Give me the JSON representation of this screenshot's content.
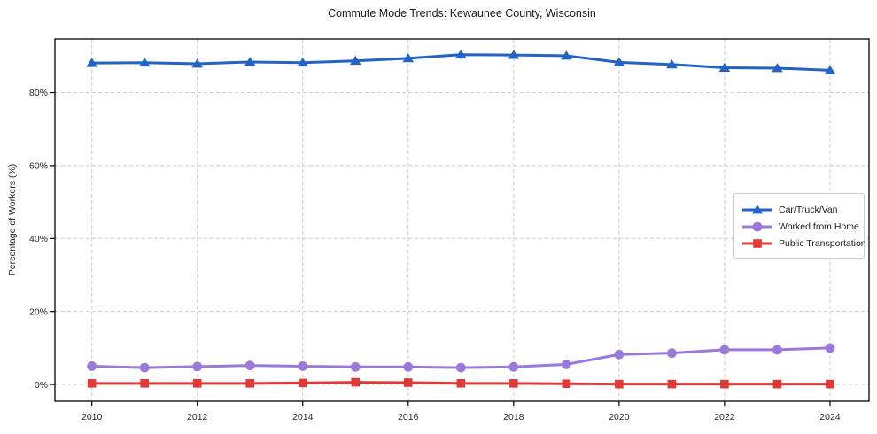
{
  "chart_data": {
    "type": "line",
    "title": "Commute Mode Trends: Kewaunee County, Wisconsin",
    "xlabel": "",
    "ylabel": "Percentage of Workers (%)",
    "x": [
      2010,
      2011,
      2012,
      2013,
      2014,
      2015,
      2016,
      2017,
      2018,
      2019,
      2020,
      2021,
      2022,
      2023,
      2024
    ],
    "xticks": [
      2010,
      2012,
      2014,
      2016,
      2018,
      2020,
      2022,
      2024
    ],
    "yticks": [
      0,
      20,
      40,
      60,
      80
    ],
    "ytick_suffix": "%",
    "xlim": [
      2009.3,
      2024.74
    ],
    "ylim": [
      -4.6,
      94.7
    ],
    "grid": true,
    "grid_style": "dashed",
    "grid_color": "#cccccc",
    "legend_position": "center-right",
    "series": [
      {
        "name": "Car/Truck/Van",
        "color": "#2263c5",
        "marker": "triangle",
        "values": [
          88.1,
          88.2,
          87.9,
          88.4,
          88.2,
          88.7,
          89.4,
          90.4,
          90.3,
          90.1,
          88.3,
          87.7,
          86.8,
          86.7,
          86.1
        ]
      },
      {
        "name": "Worked from Home",
        "color": "#9b79da",
        "marker": "circle",
        "values": [
          5.0,
          4.6,
          4.9,
          5.2,
          5.0,
          4.8,
          4.8,
          4.6,
          4.8,
          5.5,
          8.2,
          8.6,
          9.5,
          9.5,
          10.0
        ]
      },
      {
        "name": "Public Transportation",
        "color": "#e23937",
        "marker": "square",
        "values": [
          0.3,
          0.3,
          0.3,
          0.3,
          0.4,
          0.6,
          0.5,
          0.3,
          0.3,
          0.2,
          0.1,
          0.1,
          0.1,
          0.1,
          0.1
        ]
      }
    ]
  }
}
